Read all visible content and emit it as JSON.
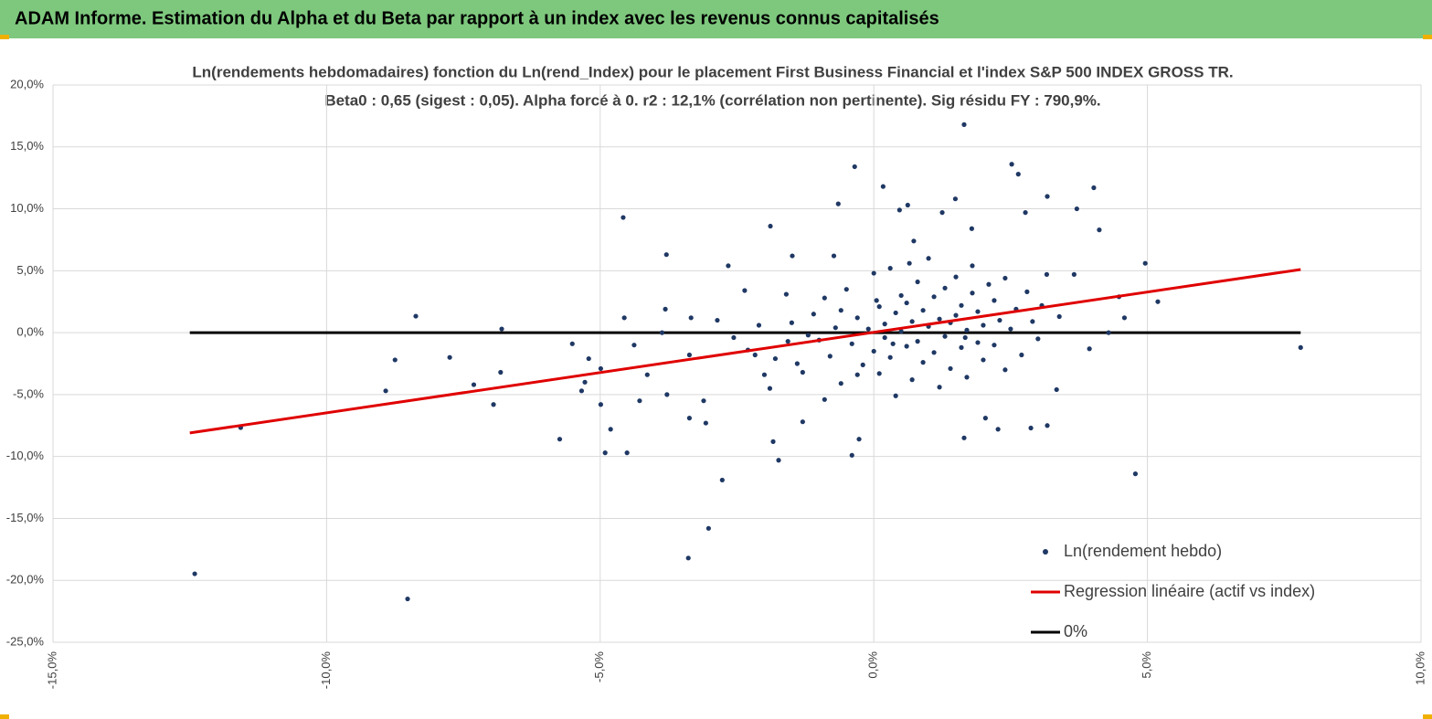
{
  "page_title": "ADAM Informe. Estimation du Alpha et du Beta par rapport à un index avec les revenus connus capitalisés",
  "chart_data": {
    "type": "scatter",
    "title": "Ln(rendements hebdomadaires) fonction du Ln(rend_Index) pour le placement First Business Financial  et l'index S&P 500 INDEX GROSS TR.",
    "subtitle": "Beta0 : 0,65 (sigest : 0,05). Alpha forcé à 0. r2 : 12,1% (corrélation non pertinente). Sig résidu FY : 790,9%.",
    "xlim": [
      -15,
      10
    ],
    "ylim": [
      -25,
      20
    ],
    "grid": true,
    "legend": "lower right",
    "xticks": [
      {
        "value": -15,
        "label": "-15,0%"
      },
      {
        "value": -10,
        "label": "-10,0%"
      },
      {
        "value": -5,
        "label": "-5,0%"
      },
      {
        "value": 0,
        "label": "0,0%"
      },
      {
        "value": 5,
        "label": "5,0%"
      },
      {
        "value": 10,
        "label": "10,0%"
      }
    ],
    "yticks": [
      {
        "value": 20,
        "label": "20,0%"
      },
      {
        "value": 15,
        "label": "15,0%"
      },
      {
        "value": 10,
        "label": "10,0%"
      },
      {
        "value": 5,
        "label": "5,0%"
      },
      {
        "value": 0,
        "label": "0,0%"
      },
      {
        "value": -5,
        "label": "-5,0%"
      },
      {
        "value": -10,
        "label": "-10,0%"
      },
      {
        "value": -15,
        "label": "-15,0%"
      },
      {
        "value": -20,
        "label": "-20,0%"
      },
      {
        "value": -25,
        "label": "-25,0%"
      }
    ],
    "series": [
      {
        "name": "Ln(rendement hebdo)",
        "color": "#1f3864",
        "type": "scatter",
        "x": [
          -12.41,
          -11.57,
          -8.52,
          -8.37,
          -8.75,
          -8.92,
          -7.75,
          -7.31,
          -6.95,
          -6.8,
          -6.82,
          -5.74,
          -5.51,
          -5.28,
          -5.34,
          -5.21,
          -4.99,
          -4.99,
          -4.91,
          -4.81,
          -4.58,
          -4.56,
          -4.51,
          -4.38,
          -4.28,
          -4.14,
          -3.87,
          -3.81,
          -3.79,
          -3.78,
          -3.37,
          -3.37,
          -3.39,
          -3.34,
          -3.11,
          -3.07,
          -3.02,
          -2.77,
          -2.66,
          -2.86,
          -2.56,
          -2.36,
          -2.17,
          -2.0,
          -1.89,
          -1.84,
          -1.74,
          -1.57,
          -1.49,
          -1.3,
          -0.73,
          -0.65,
          -0.35,
          -0.4,
          -0.27,
          0.17,
          0.47,
          0.62,
          0.73,
          1.25,
          1.49,
          1.67,
          1.65,
          1.65,
          1.79,
          2.04,
          2.27,
          2.52,
          2.64,
          2.77,
          2.87,
          3.07,
          3.16,
          3.17,
          3.17,
          3.34,
          3.39,
          3.66,
          3.71,
          3.94,
          4.02,
          4.12,
          4.29,
          4.48,
          4.58,
          4.78,
          4.96,
          5.19,
          7.8,
          -1.8,
          -1.5,
          -1.3,
          -1.1,
          -1.0,
          -0.9,
          -0.8,
          -0.7,
          -0.6,
          -0.5,
          -0.4,
          -0.3,
          -0.2,
          -0.1,
          0.0,
          0.0,
          0.1,
          0.1,
          0.2,
          0.2,
          0.3,
          0.3,
          0.4,
          0.4,
          0.5,
          0.5,
          0.6,
          0.6,
          0.7,
          0.7,
          0.8,
          0.8,
          0.9,
          0.9,
          1.0,
          1.0,
          1.1,
          1.1,
          1.2,
          1.2,
          1.3,
          1.3,
          1.4,
          1.4,
          1.5,
          1.5,
          1.6,
          1.6,
          1.7,
          1.7,
          1.8,
          1.8,
          1.9,
          1.9,
          2.0,
          2.0,
          2.1,
          2.2,
          2.2,
          2.3,
          2.4,
          2.4,
          2.5,
          2.6,
          2.7,
          2.8,
          2.9,
          3.0,
          -2.3,
          -2.1,
          -1.9,
          -1.6,
          -1.4,
          -1.2,
          -0.9,
          -0.6,
          -0.3,
          0.05,
          0.35,
          0.65
        ],
        "values": [
          -19.47,
          -7.67,
          -21.5,
          1.33,
          -2.2,
          -4.7,
          -2.0,
          -4.2,
          -5.8,
          0.3,
          -3.2,
          -8.6,
          -0.9,
          -4.0,
          -4.7,
          -2.1,
          -2.9,
          -5.8,
          -9.7,
          -7.8,
          9.3,
          1.2,
          -9.7,
          -1.0,
          -5.5,
          -3.4,
          0.0,
          1.9,
          6.3,
          -5.0,
          -1.8,
          -6.9,
          -18.2,
          1.2,
          -5.5,
          -7.3,
          -15.8,
          -11.9,
          5.4,
          1.0,
          -0.4,
          3.4,
          -1.8,
          -3.4,
          8.6,
          -8.8,
          -10.3,
          -0.7,
          6.2,
          -7.2,
          6.2,
          10.4,
          13.4,
          -9.9,
          -8.6,
          11.8,
          9.9,
          10.3,
          7.4,
          9.7,
          10.8,
          -0.4,
          -8.5,
          16.8,
          8.4,
          -6.9,
          -7.8,
          13.6,
          12.8,
          9.7,
          -7.7,
          2.2,
          4.7,
          11.0,
          -7.5,
          -4.6,
          1.3,
          4.7,
          10.0,
          -1.3,
          11.7,
          8.3,
          0.0,
          2.9,
          1.2,
          -11.4,
          5.6,
          2.5,
          -1.2,
          -2.1,
          0.8,
          -3.2,
          1.5,
          -0.6,
          2.8,
          -1.9,
          0.4,
          -4.1,
          3.5,
          -0.9,
          1.2,
          -2.6,
          0.3,
          4.8,
          -1.5,
          2.1,
          -3.3,
          0.7,
          -0.4,
          5.2,
          -2.0,
          1.6,
          -5.1,
          0.1,
          3.0,
          -1.1,
          2.4,
          -3.8,
          0.9,
          4.1,
          -0.7,
          1.8,
          -2.4,
          0.5,
          6.0,
          -1.6,
          2.9,
          -4.4,
          1.1,
          3.6,
          -0.3,
          0.8,
          -2.9,
          4.5,
          1.4,
          -1.2,
          2.2,
          0.2,
          -3.6,
          3.2,
          5.4,
          -0.8,
          1.7,
          -2.2,
          0.6,
          3.9,
          -1.0,
          2.6,
          1.0,
          -3.0,
          4.4,
          0.3,
          1.9,
          -1.8,
          3.3,
          0.9,
          -0.5,
          -1.4,
          0.6,
          -4.5,
          3.1,
          -2.5,
          -0.2,
          -5.4,
          1.8,
          -3.4,
          2.6,
          -0.9,
          5.6
        ]
      },
      {
        "name": "Regression linéaire (actif vs index)",
        "color": "#e00000",
        "type": "line",
        "x": [
          -12.5,
          7.8
        ],
        "values": [
          -8.1,
          5.1
        ]
      },
      {
        "name": "0%",
        "color": "#000000",
        "type": "line",
        "x": [
          -12.5,
          7.8
        ],
        "values": [
          0,
          0
        ]
      }
    ]
  }
}
